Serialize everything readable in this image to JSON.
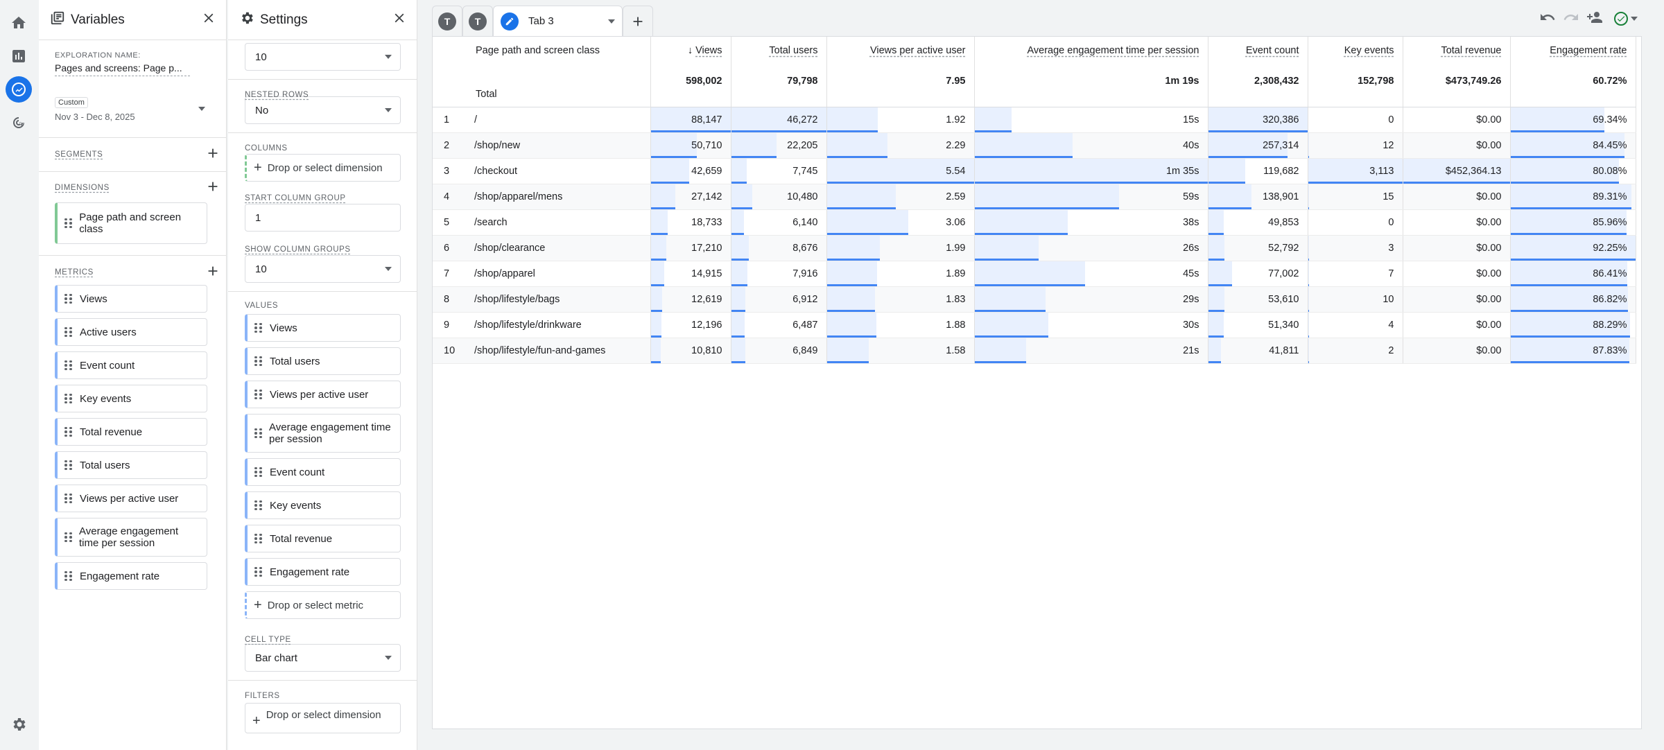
{
  "variables": {
    "title": "Variables",
    "exploration_label": "EXPLORATION NAME:",
    "exploration_name": "Pages and screens: Page p...",
    "date_tag": "Custom",
    "date_range": "Nov 3 - Dec 8, 2025",
    "segments_label": "SEGMENTS",
    "dimensions_label": "DIMENSIONS",
    "dimensions": [
      "Page path and screen class"
    ],
    "metrics_label": "METRICS",
    "metrics": [
      "Views",
      "Active users",
      "Event count",
      "Key events",
      "Total revenue",
      "Total users",
      "Views per active user",
      "Average engagement time per session",
      "Engagement rate"
    ]
  },
  "settings": {
    "title": "Settings",
    "show_rows_value": "10",
    "nested_rows_label": "NESTED ROWS",
    "nested_rows_value": "No",
    "columns_label": "COLUMNS",
    "drop_dimension": "Drop or select dimension",
    "start_column_group_label": "START COLUMN GROUP",
    "start_column_group_value": "1",
    "show_column_groups_label": "SHOW COLUMN GROUPS",
    "show_column_groups_value": "10",
    "values_label": "VALUES",
    "values": [
      "Views",
      "Total users",
      "Views per active user",
      "Average engagement time per session",
      "Event count",
      "Key events",
      "Total revenue",
      "Engagement rate"
    ],
    "drop_metric": "Drop or select metric",
    "cell_type_label": "CELL TYPE",
    "cell_type_value": "Bar chart",
    "filters_label": "FILTERS",
    "drop_filter": "Drop or select dimension"
  },
  "tabs": {
    "avatar1": "T",
    "avatar2": "T",
    "active": "Tab 3"
  },
  "colors": {
    "accent": "#1a73e8",
    "bar_fill": "#e8f0fe",
    "bar_line": "#4285f4"
  },
  "table": {
    "dimension_header": "Page path and screen class",
    "total_label": "Total",
    "columns": [
      {
        "key": "views",
        "label": "Views",
        "sorted": true,
        "total": "598,002"
      },
      {
        "key": "users",
        "label": "Total users",
        "total": "79,798"
      },
      {
        "key": "vpau",
        "label": "Views per active user",
        "total": "7.95"
      },
      {
        "key": "aet",
        "label": "Average engagement time per session",
        "total": "1m 19s"
      },
      {
        "key": "events",
        "label": "Event count",
        "total": "2,308,432"
      },
      {
        "key": "keyev",
        "label": "Key events",
        "total": "152,798"
      },
      {
        "key": "rev",
        "label": "Total revenue",
        "total": "$473,749.26"
      },
      {
        "key": "er",
        "label": "Engagement rate",
        "total": "60.72%"
      }
    ],
    "rows": [
      {
        "i": "1",
        "path": "/",
        "cells": [
          "88,147",
          "46,272",
          "1.92",
          "15s",
          "320,386",
          "0",
          "$0.00",
          "69.34%"
        ],
        "nums": [
          88147,
          46272,
          1.92,
          15,
          320386,
          0,
          0,
          69.34
        ]
      },
      {
        "i": "2",
        "path": "/shop/new",
        "cells": [
          "50,710",
          "22,205",
          "2.29",
          "40s",
          "257,314",
          "12",
          "$0.00",
          "84.45%"
        ],
        "nums": [
          50710,
          22205,
          2.29,
          40,
          257314,
          12,
          0,
          84.45
        ]
      },
      {
        "i": "3",
        "path": "/checkout",
        "cells": [
          "42,659",
          "7,745",
          "5.54",
          "1m 35s",
          "119,682",
          "3,113",
          "$452,364.13",
          "80.08%"
        ],
        "nums": [
          42659,
          7745,
          5.54,
          95,
          119682,
          3113,
          452364.13,
          80.08
        ]
      },
      {
        "i": "4",
        "path": "/shop/apparel/mens",
        "cells": [
          "27,142",
          "10,480",
          "2.59",
          "59s",
          "138,901",
          "15",
          "$0.00",
          "89.31%"
        ],
        "nums": [
          27142,
          10480,
          2.59,
          59,
          138901,
          15,
          0,
          89.31
        ]
      },
      {
        "i": "5",
        "path": "/search",
        "cells": [
          "18,733",
          "6,140",
          "3.06",
          "38s",
          "49,853",
          "0",
          "$0.00",
          "85.96%"
        ],
        "nums": [
          18733,
          6140,
          3.06,
          38,
          49853,
          0,
          0,
          85.96
        ]
      },
      {
        "i": "6",
        "path": "/shop/clearance",
        "cells": [
          "17,210",
          "8,676",
          "1.99",
          "26s",
          "52,792",
          "3",
          "$0.00",
          "92.25%"
        ],
        "nums": [
          17210,
          8676,
          1.99,
          26,
          52792,
          3,
          0,
          92.25
        ]
      },
      {
        "i": "7",
        "path": "/shop/apparel",
        "cells": [
          "14,915",
          "7,916",
          "1.89",
          "45s",
          "77,002",
          "7",
          "$0.00",
          "86.41%"
        ],
        "nums": [
          14915,
          7916,
          1.89,
          45,
          77002,
          7,
          0,
          86.41
        ]
      },
      {
        "i": "8",
        "path": "/shop/lifestyle/bags",
        "cells": [
          "12,619",
          "6,912",
          "1.83",
          "29s",
          "53,610",
          "10",
          "$0.00",
          "86.82%"
        ],
        "nums": [
          12619,
          6912,
          1.83,
          29,
          53610,
          10,
          0,
          86.82
        ]
      },
      {
        "i": "9",
        "path": "/shop/lifestyle/drinkware",
        "cells": [
          "12,196",
          "6,487",
          "1.88",
          "30s",
          "51,340",
          "4",
          "$0.00",
          "88.29%"
        ],
        "nums": [
          12196,
          6487,
          1.88,
          30,
          51340,
          4,
          0,
          88.29
        ]
      },
      {
        "i": "10",
        "path": "/shop/lifestyle/fun-and-games",
        "cells": [
          "10,810",
          "6,849",
          "1.58",
          "21s",
          "41,811",
          "2",
          "$0.00",
          "87.83%"
        ],
        "nums": [
          10810,
          6849,
          1.58,
          21,
          41811,
          2,
          0,
          87.83
        ]
      }
    ]
  }
}
